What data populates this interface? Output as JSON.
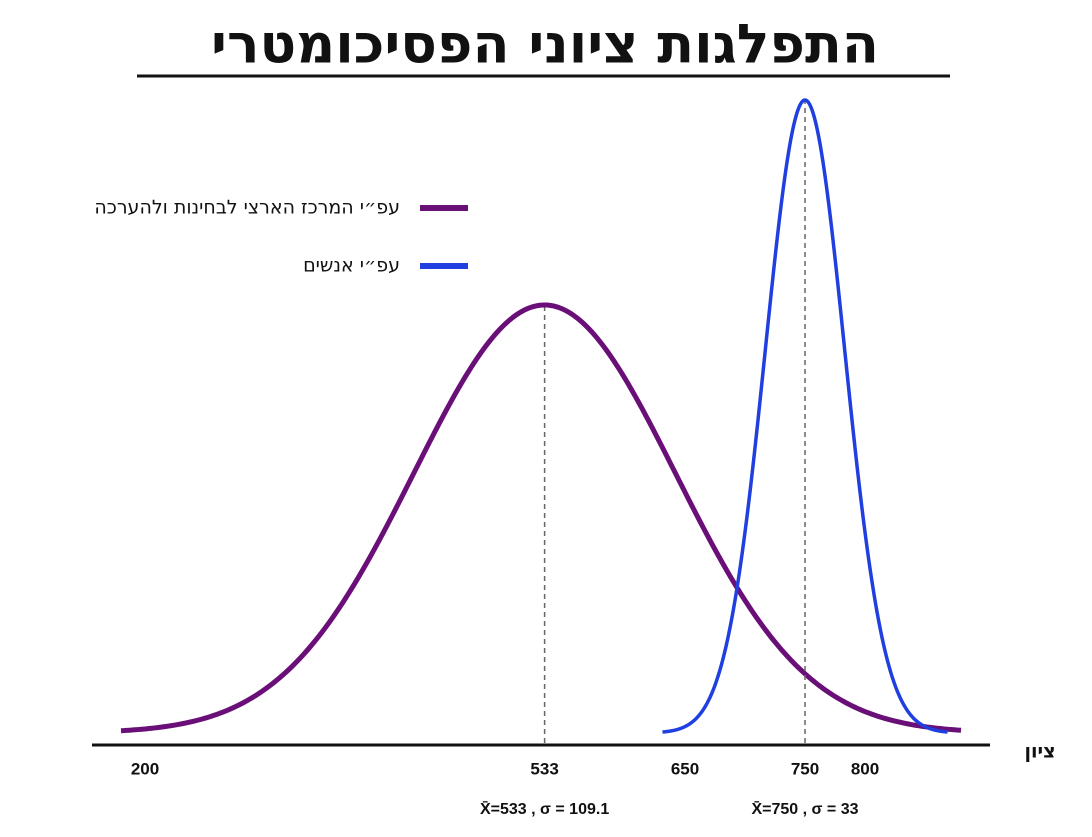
{
  "chart_data": {
    "type": "normal",
    "title": "התפלגות ציוני הפסיכומטרי",
    "x_label": "ציון",
    "xlim": [
      180,
      880
    ],
    "xticks": [
      200,
      533,
      650,
      750,
      800
    ],
    "series": [
      {
        "name": "עפ״י המרכז הארצי לבחינות ולהערכה",
        "color": "#6a0f78",
        "mean": 533,
        "sigma": 109.1,
        "stat_label": "X̄=533 , σ = 109.1"
      },
      {
        "name": "עפ״י אנשים",
        "color": "#1f3fe0",
        "mean": 750,
        "sigma": 33,
        "stat_label": "X̄=750 , σ = 33"
      }
    ]
  }
}
